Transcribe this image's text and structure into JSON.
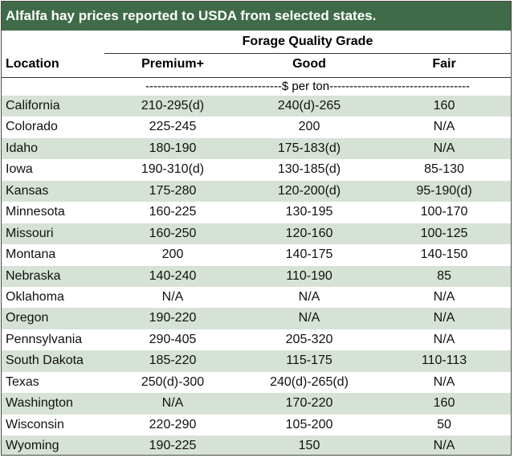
{
  "title": "Alfalfa hay prices reported to USDA from selected states.",
  "header": {
    "location": "Location",
    "grade_group": "Forage Quality Grade",
    "premium": "Premium+",
    "good": "Good",
    "fair": "Fair"
  },
  "units": "----------------------------------$ per ton-----------------------------------",
  "colors": {
    "title_bg": "#3f6b48",
    "stripe": "#d6e2d5"
  },
  "rows": [
    {
      "location": "California",
      "premium": "210-295(d)",
      "good": "240(d)-265",
      "fair": "160"
    },
    {
      "location": "Colorado",
      "premium": "225-245",
      "good": "200",
      "fair": "N/A"
    },
    {
      "location": "Idaho",
      "premium": "180-190",
      "good": "175-183(d)",
      "fair": "N/A"
    },
    {
      "location": "Iowa",
      "premium": "190-310(d)",
      "good": "130-185(d)",
      "fair": "85-130"
    },
    {
      "location": "Kansas",
      "premium": "175-280",
      "good": "120-200(d)",
      "fair": "95-190(d)"
    },
    {
      "location": "Minnesota",
      "premium": "160-225",
      "good": "130-195",
      "fair": "100-170"
    },
    {
      "location": "Missouri",
      "premium": "160-250",
      "good": "120-160",
      "fair": "100-125"
    },
    {
      "location": "Montana",
      "premium": "200",
      "good": "140-175",
      "fair": "140-150"
    },
    {
      "location": "Nebraska",
      "premium": "140-240",
      "good": "110-190",
      "fair": "85"
    },
    {
      "location": "Oklahoma",
      "premium": "N/A",
      "good": "N/A",
      "fair": "N/A"
    },
    {
      "location": "Oregon",
      "premium": "190-220",
      "good": "N/A",
      "fair": "N/A"
    },
    {
      "location": "Pennsylvania",
      "premium": "290-405",
      "good": "205-320",
      "fair": "N/A"
    },
    {
      "location": "South Dakota",
      "premium": "185-220",
      "good": "115-175",
      "fair": "110-113"
    },
    {
      "location": "Texas",
      "premium": "250(d)-300",
      "good": "240(d)-265(d)",
      "fair": "N/A"
    },
    {
      "location": "Washington",
      "premium": "N/A",
      "good": "170-220",
      "fair": "160"
    },
    {
      "location": "Wisconsin",
      "premium": "220-290",
      "good": "105-200",
      "fair": "50"
    },
    {
      "location": "Wyoming",
      "premium": "190-225",
      "good": "150",
      "fair": "N/A"
    }
  ]
}
